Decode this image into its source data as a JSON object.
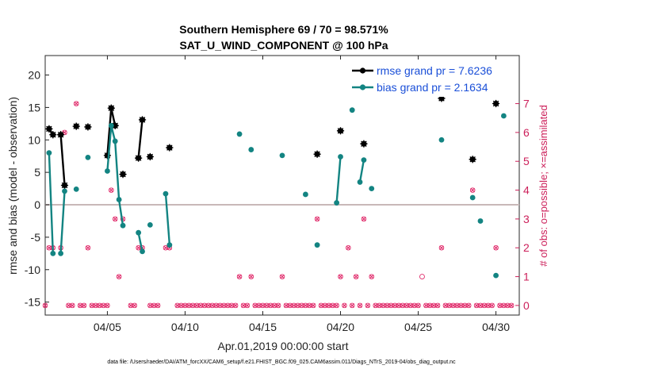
{
  "chart_data": {
    "type": "line",
    "title": "Southern Hemisphere 69 / 70 = 98.571%",
    "subtitle": "SAT_U_WIND_COMPONENT @ 100 hPa",
    "xlabel": "Apr.01,2019 00:00:00 start",
    "ylabel": "rmse and bias (model - observation)",
    "y2label": "# of obs: o=possible; ×=assimilated",
    "xlim": [
      1,
      31.5
    ],
    "ylim": [
      -17,
      23
    ],
    "y2lim": [
      -0.333,
      8.667
    ],
    "xticks": [
      5,
      10,
      15,
      20,
      25,
      30
    ],
    "xtick_labels": [
      "04/05",
      "04/10",
      "04/15",
      "04/20",
      "04/25",
      "04/30"
    ],
    "yticks": [
      -15,
      -10,
      -5,
      0,
      5,
      10,
      15,
      20
    ],
    "y2ticks": [
      0,
      1,
      2,
      3,
      4,
      5,
      6,
      7
    ],
    "zero_line": 0,
    "series": [
      {
        "name": "rmse grand pr = 7.6236",
        "color": "#000000",
        "marker": "star",
        "segments": [
          [
            [
              1.25,
              11.7
            ],
            [
              1.5,
              10.8
            ]
          ],
          [
            [
              2.0,
              10.8
            ],
            [
              2.25,
              3.0
            ]
          ],
          [
            [
              3.0,
              12.1
            ]
          ],
          [
            [
              3.75,
              12.0
            ]
          ],
          [
            [
              5.0,
              7.6
            ],
            [
              5.25,
              14.9
            ],
            [
              5.5,
              12.2
            ]
          ],
          [
            [
              6.0,
              4.7
            ]
          ],
          [
            [
              7.0,
              7.2
            ],
            [
              7.25,
              13.1
            ]
          ],
          [
            [
              7.75,
              7.4
            ]
          ],
          [
            [
              9.0,
              8.8
            ]
          ],
          [
            [
              18.5,
              7.8
            ]
          ],
          [
            [
              20.0,
              11.4
            ]
          ],
          [
            [
              21.5,
              9.4
            ]
          ],
          [
            [
              26.5,
              16.4
            ]
          ],
          [
            [
              28.5,
              7.0
            ]
          ],
          [
            [
              30.0,
              15.6
            ]
          ]
        ]
      },
      {
        "name": "bias grand pr = 2.1634",
        "color": "#138482",
        "marker": "circle",
        "segments": [
          [
            [
              1.25,
              8.0
            ],
            [
              1.5,
              -7.5
            ]
          ],
          [
            [
              2.0,
              -7.5
            ],
            [
              2.25,
              2.1
            ]
          ],
          [
            [
              3.0,
              2.4
            ]
          ],
          [
            [
              3.75,
              7.3
            ]
          ],
          [
            [
              5.0,
              5.2
            ],
            [
              5.25,
              12.2
            ],
            [
              5.5,
              9.8
            ],
            [
              5.75,
              0.8
            ],
            [
              6.0,
              -3.2
            ]
          ],
          [
            [
              7.0,
              -4.3
            ],
            [
              7.25,
              -7.2
            ]
          ],
          [
            [
              7.75,
              -3.1
            ]
          ],
          [
            [
              8.75,
              1.7
            ],
            [
              9.0,
              -6.2
            ]
          ],
          [
            [
              13.5,
              10.9
            ]
          ],
          [
            [
              14.25,
              8.5
            ]
          ],
          [
            [
              16.25,
              7.6
            ]
          ],
          [
            [
              17.75,
              1.6
            ]
          ],
          [
            [
              18.5,
              -6.2
            ]
          ],
          [
            [
              19.75,
              0.3
            ],
            [
              20.0,
              7.4
            ]
          ],
          [
            [
              20.75,
              14.6
            ]
          ],
          [
            [
              21.25,
              3.5
            ],
            [
              21.5,
              6.9
            ]
          ],
          [
            [
              22.0,
              2.5
            ]
          ],
          [
            [
              26.5,
              10.0
            ]
          ],
          [
            [
              28.5,
              1.1
            ]
          ],
          [
            [
              29.0,
              -2.5
            ]
          ],
          [
            [
              30.0,
              -10.9
            ]
          ],
          [
            [
              30.5,
              13.7
            ]
          ]
        ]
      }
    ],
    "obs_assimilated": [
      [
        1.0,
        0
      ],
      [
        1.25,
        2
      ],
      [
        1.5,
        2
      ],
      [
        2.0,
        2
      ],
      [
        2.25,
        6
      ],
      [
        2.5,
        0
      ],
      [
        2.75,
        0
      ],
      [
        3.0,
        7
      ],
      [
        3.25,
        0
      ],
      [
        3.5,
        0
      ],
      [
        3.75,
        2
      ],
      [
        4.0,
        0
      ],
      [
        4.25,
        0
      ],
      [
        4.5,
        0
      ],
      [
        4.75,
        0
      ],
      [
        5.0,
        0
      ],
      [
        5.25,
        4
      ],
      [
        5.5,
        3
      ],
      [
        5.75,
        1
      ],
      [
        6.0,
        3
      ],
      [
        6.5,
        0
      ],
      [
        6.75,
        0
      ],
      [
        7.0,
        2
      ],
      [
        7.25,
        2
      ],
      [
        7.75,
        0
      ],
      [
        8.0,
        0
      ],
      [
        8.25,
        0
      ],
      [
        8.75,
        2
      ],
      [
        9.0,
        2
      ],
      [
        9.5,
        0
      ],
      [
        9.75,
        0
      ],
      [
        10.0,
        0
      ],
      [
        10.25,
        0
      ],
      [
        10.5,
        0
      ],
      [
        10.75,
        0
      ],
      [
        11.0,
        0
      ],
      [
        11.25,
        0
      ],
      [
        11.5,
        0
      ],
      [
        11.75,
        0
      ],
      [
        12.0,
        0
      ],
      [
        12.25,
        0
      ],
      [
        12.5,
        0
      ],
      [
        12.75,
        0
      ],
      [
        13.0,
        0
      ],
      [
        13.25,
        0
      ],
      [
        13.5,
        1
      ],
      [
        13.75,
        0
      ],
      [
        14.0,
        0
      ],
      [
        14.25,
        1
      ],
      [
        14.5,
        0
      ],
      [
        14.75,
        0
      ],
      [
        15.0,
        0
      ],
      [
        15.25,
        0
      ],
      [
        15.5,
        0
      ],
      [
        15.75,
        0
      ],
      [
        16.0,
        0
      ],
      [
        16.25,
        1
      ],
      [
        16.5,
        0
      ],
      [
        16.75,
        0
      ],
      [
        17.0,
        0
      ],
      [
        17.25,
        0
      ],
      [
        17.5,
        0
      ],
      [
        17.75,
        0
      ],
      [
        18.0,
        0
      ],
      [
        18.25,
        0
      ],
      [
        18.5,
        3
      ],
      [
        18.75,
        0
      ],
      [
        19.0,
        0
      ],
      [
        19.25,
        0
      ],
      [
        19.5,
        0
      ],
      [
        19.75,
        0
      ],
      [
        20.0,
        1
      ],
      [
        20.25,
        0
      ],
      [
        20.5,
        2
      ],
      [
        20.75,
        0
      ],
      [
        21.0,
        1
      ],
      [
        21.25,
        0
      ],
      [
        21.5,
        3
      ],
      [
        21.75,
        0
      ],
      [
        22.0,
        1
      ],
      [
        22.25,
        0
      ],
      [
        22.5,
        0
      ],
      [
        22.75,
        0
      ],
      [
        23.0,
        0
      ],
      [
        23.25,
        0
      ],
      [
        23.5,
        0
      ],
      [
        23.75,
        0
      ],
      [
        24.0,
        0
      ],
      [
        24.25,
        0
      ],
      [
        24.5,
        0
      ],
      [
        24.75,
        0
      ],
      [
        25.0,
        0
      ],
      [
        25.5,
        0
      ],
      [
        25.75,
        0
      ],
      [
        26.0,
        0
      ],
      [
        26.25,
        0
      ],
      [
        26.5,
        2
      ],
      [
        26.75,
        0
      ],
      [
        27.0,
        0
      ],
      [
        27.25,
        0
      ],
      [
        27.5,
        0
      ],
      [
        27.75,
        0
      ],
      [
        28.0,
        0
      ],
      [
        28.25,
        0
      ],
      [
        28.5,
        4
      ],
      [
        28.75,
        0
      ],
      [
        29.0,
        0
      ],
      [
        29.25,
        0
      ],
      [
        29.5,
        0
      ],
      [
        29.75,
        0
      ],
      [
        30.0,
        2
      ],
      [
        30.25,
        0
      ],
      [
        30.5,
        0
      ],
      [
        30.75,
        0
      ],
      [
        31.0,
        0
      ]
    ],
    "obs_possible_only": [
      [
        25.25,
        1
      ]
    ],
    "legend": [
      "rmse grand pr = 7.6236",
      "bias grand pr = 2.1634"
    ],
    "legend_location": "top-right",
    "footnote": "data file: /Users/raeder/DAI/ATM_forcXX/CAM6_setup/f.e21.FHIST_BGC.f09_025.CAM6assim.011/Diags_NTrS_2019-04/obs_diag_output.nc"
  }
}
